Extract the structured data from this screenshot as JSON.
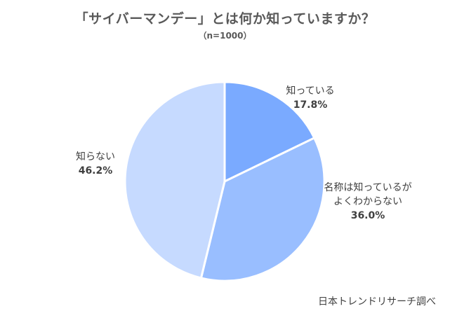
{
  "title": "「サイバーマンデー」とは何か知っていますか？",
  "subtitle": "（n=1000）",
  "source": "日本トレンドリサーチ調べ",
  "chart_data": {
    "type": "pie",
    "title": "「サイバーマンデー」とは何か知っていますか？",
    "subtitle": "（n=1000）",
    "start_angle_deg": 0,
    "direction": "clockwise",
    "slices": [
      {
        "label": "知っている",
        "label_lines": [
          "知っている"
        ],
        "value": 17.8,
        "display": "17.8%",
        "color": "#7AAAFF"
      },
      {
        "label": "名称は知っているがよくわからない",
        "label_lines": [
          "名称は知っているが",
          "よくわからない"
        ],
        "value": 36.0,
        "display": "36.0%",
        "color": "#99BEFF"
      },
      {
        "label": "知らない",
        "label_lines": [
          "知らない"
        ],
        "value": 46.2,
        "display": "46.2%",
        "color": "#C6DAFF"
      }
    ],
    "source": "日本トレンドリサーチ調べ"
  }
}
